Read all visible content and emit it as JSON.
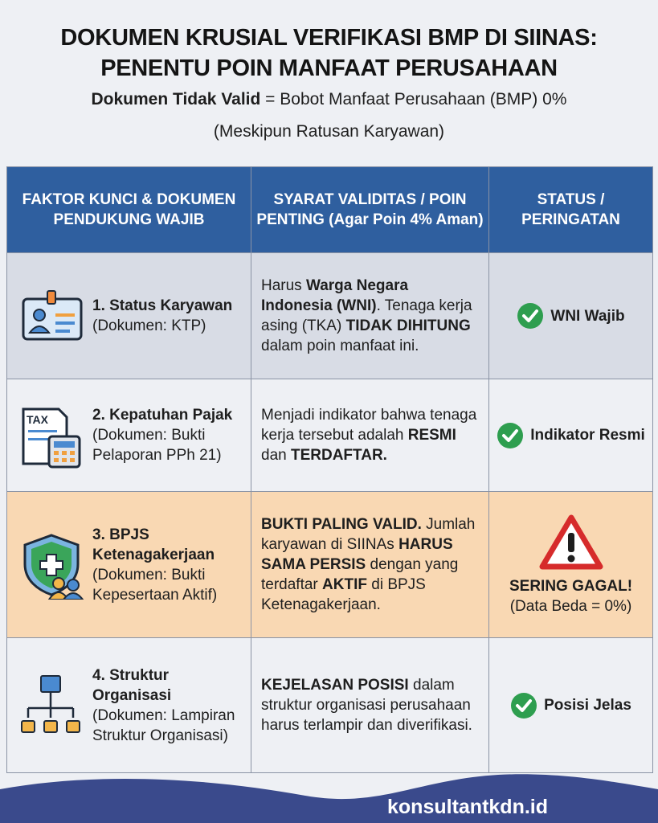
{
  "title": {
    "line1": "DOKUMEN KRUSIAL VERIFIKASI BMP DI SIINAS:",
    "line2": "PENENTU POIN MANFAAT PERUSAHAAN"
  },
  "subtitle": {
    "bold": "Dokumen Tidak Valid",
    "rest": " = Bobot Manfaat Perusahaan (BMP) 0%",
    "line2": "(Meskipun Ratusan Karyawan)"
  },
  "colors": {
    "header": "#2f5f9f",
    "row_highlight": "#f9d8b3",
    "check": "#2e9e4f",
    "warning": "#d62b2b",
    "footer": "#3a4a8c"
  },
  "table": {
    "headers": [
      "FAKTOR KUNCI & DOKUMEN PENDUKUNG WAJIB",
      "SYARAT VALIDITAS / POIN PENTING (Agar Poin 4% Aman)",
      "STATUS / PERINGATAN"
    ],
    "rows": [
      {
        "icon": "id-card-icon",
        "name": "1. Status Karyawan",
        "doc": "(Dokumen: KTP)",
        "req": [
          {
            "t": "Harus ",
            "b": false
          },
          {
            "t": "Warga Negara Indonesia (WNI)",
            "b": true
          },
          {
            "t": ". Tenaga kerja asing (TKA) ",
            "b": false
          },
          {
            "t": "TIDAK DIHITUNG",
            "b": true
          },
          {
            "t": " dalam poin manfaat ini.",
            "b": false
          }
        ],
        "status_icon": "check-icon",
        "status": "WNI Wajib"
      },
      {
        "icon": "tax-calculator-icon",
        "icon_text": "TAX",
        "name": "2. Kepatuhan Pajak",
        "doc": "(Dokumen: Bukti Pelaporan PPh 21)",
        "req": [
          {
            "t": "Menjadi indikator bahwa tenaga kerja tersebut adalah ",
            "b": false
          },
          {
            "t": "RESMI",
            "b": true
          },
          {
            "t": " dan ",
            "b": false
          },
          {
            "t": "TERDAFTAR.",
            "b": true
          }
        ],
        "status_icon": "check-icon",
        "status": "Indikator Resmi"
      },
      {
        "icon": "shield-health-icon",
        "name": "3. BPJS Ketenagakerjaan",
        "doc": "(Dokumen: Bukti Kepesertaan Aktif)",
        "req": [
          {
            "t": "BUKTI PALING VALID.",
            "b": true
          },
          {
            "t": " Jumlah karyawan di SIINAs ",
            "b": false
          },
          {
            "t": "HARUS SAMA PERSIS",
            "b": true
          },
          {
            "t": " dengan yang terdaftar ",
            "b": false
          },
          {
            "t": "AKTIF",
            "b": true
          },
          {
            "t": " di BPJS Ketenagakerjaan.",
            "b": false
          }
        ],
        "status_icon": "warning-icon",
        "status": "SERING GAGAL!",
        "status_note": "(Data Beda = 0%)"
      },
      {
        "icon": "org-chart-icon",
        "name": "4. Struktur Organisasi",
        "doc": "(Dokumen: Lampiran Struktur Organisasi)",
        "req": [
          {
            "t": "KEJELASAN POSISI",
            "b": true
          },
          {
            "t": " dalam struktur organisasi perusahaan harus terlampir dan diverifikasi.",
            "b": false
          }
        ],
        "status_icon": "check-icon",
        "status": "Posisi Jelas"
      }
    ]
  },
  "footer": {
    "site": "konsultantkdn.id"
  }
}
